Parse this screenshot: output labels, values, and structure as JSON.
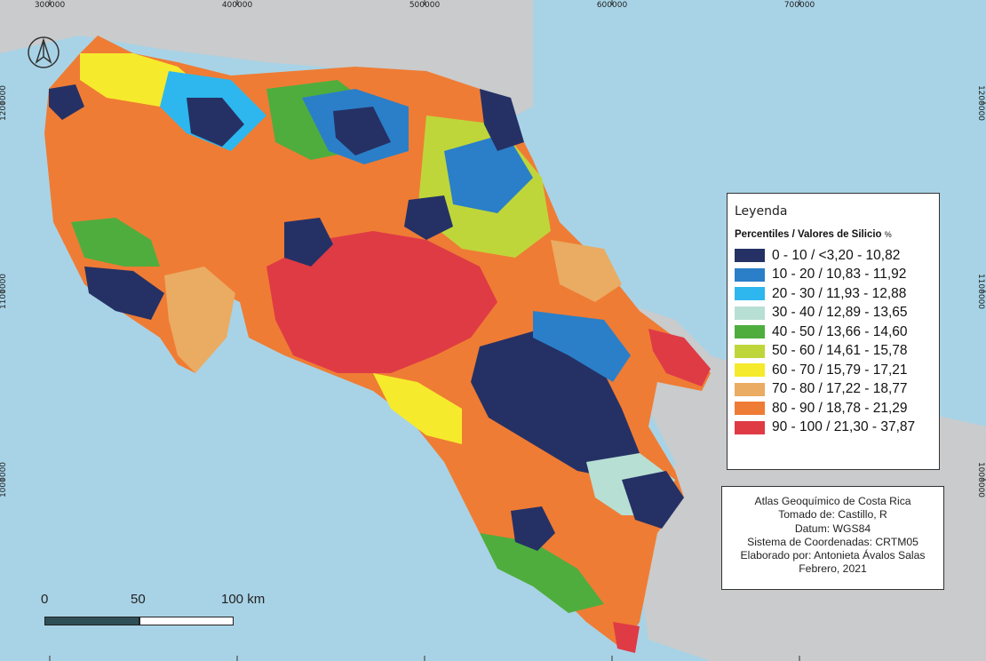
{
  "map": {
    "background_color": "#a8d3e6",
    "land_color": "#c9cbcc",
    "top_ticks": [
      "300000",
      "400000",
      "500000",
      "600000",
      "700000"
    ],
    "left_ticks": [
      "1200000",
      "1100000",
      "1000000"
    ],
    "right_ticks": [
      "1200000",
      "1100000",
      "1000000"
    ],
    "north_arrow_icon": "north-arrow-icon"
  },
  "legend": {
    "title": "Leyenda",
    "header": "Percentiles  /  Valores de Silicio",
    "unit": "%",
    "items": [
      {
        "label": "0 - 10 / <3,20 - 10,82",
        "color": "#253165"
      },
      {
        "label": "10 - 20 / 10,83 - 11,92",
        "color": "#2b7fc8"
      },
      {
        "label": "20 - 30 / 11,93 - 12,88",
        "color": "#2db7ee"
      },
      {
        "label": "30 - 40 / 12,89 - 13,65",
        "color": "#b7dfd3"
      },
      {
        "label": "40 - 50 / 13,66 - 14,60",
        "color": "#4fad3e"
      },
      {
        "label": "50 - 60 / 14,61 - 15,78",
        "color": "#bfd63a"
      },
      {
        "label": "60 - 70 / 15,79 - 17,21",
        "color": "#f6ea2c"
      },
      {
        "label": "70 - 80 / 17,22 - 18,77",
        "color": "#eaab62"
      },
      {
        "label": "80 - 90 / 18,78 - 21,29",
        "color": "#ef7c34"
      },
      {
        "label": "90 - 100 / 21,30 - 37,87",
        "color": "#df3b45"
      }
    ]
  },
  "info": {
    "lines": [
      "Atlas Geoquímico de Costa Rica",
      "Tomado de: Castillo, R",
      "Datum: WGS84",
      "Sistema de Coordenadas: CRTM05",
      "Elaborado por: Antonieta Ávalos Salas",
      "Febrero, 2021"
    ]
  },
  "scale_bar": {
    "labels": [
      "0",
      "50",
      "100 km"
    ]
  }
}
